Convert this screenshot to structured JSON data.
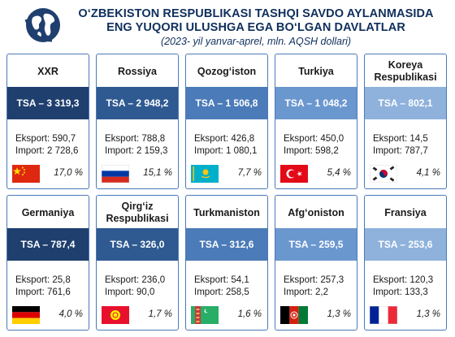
{
  "header": {
    "title_line1": "O‘ZBEKISTON RESPUBLIKASI TASHQI SAVDO AYLANMASIDA",
    "title_line2": "ENG YUQORI ULUSHGA EGA BO‘LGAN DAVLATLAR",
    "subtitle": "(2023- yil yanvar-aprel, mln. AQSH dollari)",
    "logo_icon": "globe-icon"
  },
  "countries": [
    {
      "name": "XXR",
      "tsa": "TSA – 3 319,3",
      "export": "Eksport: 590,7",
      "import": "Import: 2 728,6",
      "share": "17,0 %",
      "flag": "flag-china-icon",
      "color": "#1f3f6e"
    },
    {
      "name": "Rossiya",
      "tsa": "TSA – 2 948,2",
      "export": "Eksport: 788,8",
      "import": "Import: 2 159,3",
      "share": "15,1 %",
      "flag": "flag-russia-icon",
      "color": "#2f5a91"
    },
    {
      "name": "Qozog‘iston",
      "tsa": "TSA – 1 506,8",
      "export": "Eksport: 426,8",
      "import": "Import: 1 080,1",
      "share": "7,7 %",
      "flag": "flag-kazakhstan-icon",
      "color": "#4b7bb8"
    },
    {
      "name": "Turkiya",
      "tsa": "TSA – 1 048,2",
      "export": "Eksport: 450,0",
      "import": "Import: 598,2",
      "share": "5,4 %",
      "flag": "flag-turkey-icon",
      "color": "#6b97cf"
    },
    {
      "name": "Koreya Respublikasi",
      "tsa": "TSA – 802,1",
      "export": "Eksport: 14,5",
      "import": "Import: 787,7",
      "share": "4,1 %",
      "flag": "flag-korea-icon",
      "color": "#8eb2dc"
    },
    {
      "name": "Germaniya",
      "tsa": "TSA – 787,4",
      "export": "Eksport: 25,8",
      "import": "Import: 761,6",
      "share": "4,0 %",
      "flag": "flag-germany-icon",
      "color": "#1f3f6e"
    },
    {
      "name": "Qirg‘iz Respublikasi",
      "tsa": "TSA – 326,0",
      "export": "Eksport: 236,0",
      "import": "Import: 90,0",
      "share": "1,7 %",
      "flag": "flag-kyrgyzstan-icon",
      "color": "#2f5a91"
    },
    {
      "name": "Turkmaniston",
      "tsa": "TSA – 312,6",
      "export": "Eksport: 54,1",
      "import": "Import: 258,5",
      "share": "1,6 %",
      "flag": "flag-turkmenistan-icon",
      "color": "#4b7bb8"
    },
    {
      "name": "Afg‘oniston",
      "tsa": "TSA – 259,5",
      "export": "Eksport: 257,3",
      "import": "Import: 2,2",
      "share": "1,3 %",
      "flag": "flag-afghanistan-icon",
      "color": "#6b97cf"
    },
    {
      "name": "Fransiya",
      "tsa": "TSA – 253,6",
      "export": "Eksport: 120,3",
      "import": "Import: 133,3",
      "share": "1,3 %",
      "flag": "flag-france-icon",
      "color": "#8eb2dc"
    }
  ]
}
